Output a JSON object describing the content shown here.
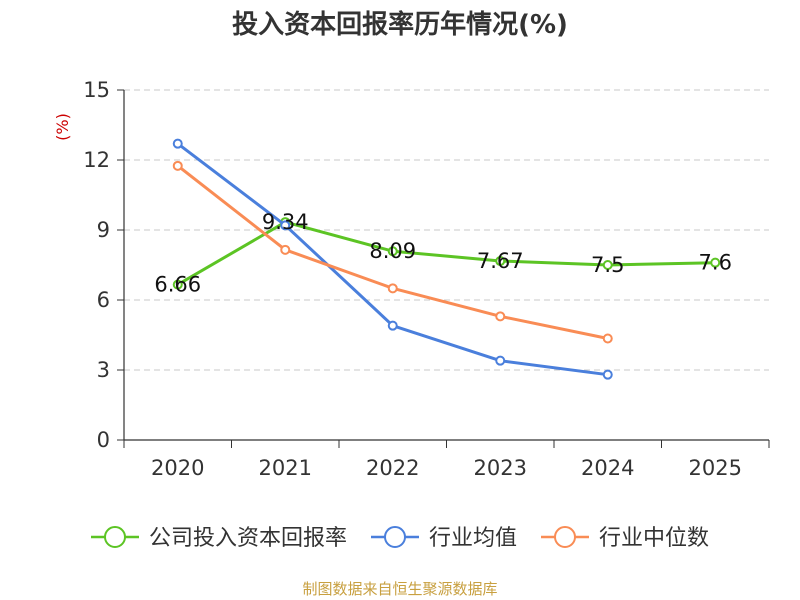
{
  "chart_data": {
    "type": "line",
    "title": "投入资本回报率历年情况(%)",
    "ylabel": "(%)",
    "xlabel": "",
    "categories": [
      "2020",
      "2021",
      "2022",
      "2023",
      "2024",
      "2025"
    ],
    "ylim": [
      0,
      15
    ],
    "yticks": [
      "0",
      "3",
      "6",
      "9",
      "12",
      "15"
    ],
    "grid": true,
    "legend_position": "bottom",
    "series": [
      {
        "name": "公司投入资本回报率",
        "color": "#5cc424",
        "values": [
          6.66,
          9.34,
          8.09,
          7.67,
          7.5,
          7.6
        ],
        "labels": [
          "6.66",
          "9.34",
          "8.09",
          "7.67",
          "7.5",
          "7.6"
        ]
      },
      {
        "name": "行业均值",
        "color": "#4a7fdc",
        "values": [
          12.7,
          9.2,
          4.9,
          3.4,
          2.8,
          null
        ]
      },
      {
        "name": "行业中位数",
        "color": "#f98c55",
        "values": [
          11.75,
          8.15,
          6.5,
          5.3,
          4.35,
          null
        ]
      }
    ],
    "source": "制图数据来自恒生聚源数据库"
  }
}
